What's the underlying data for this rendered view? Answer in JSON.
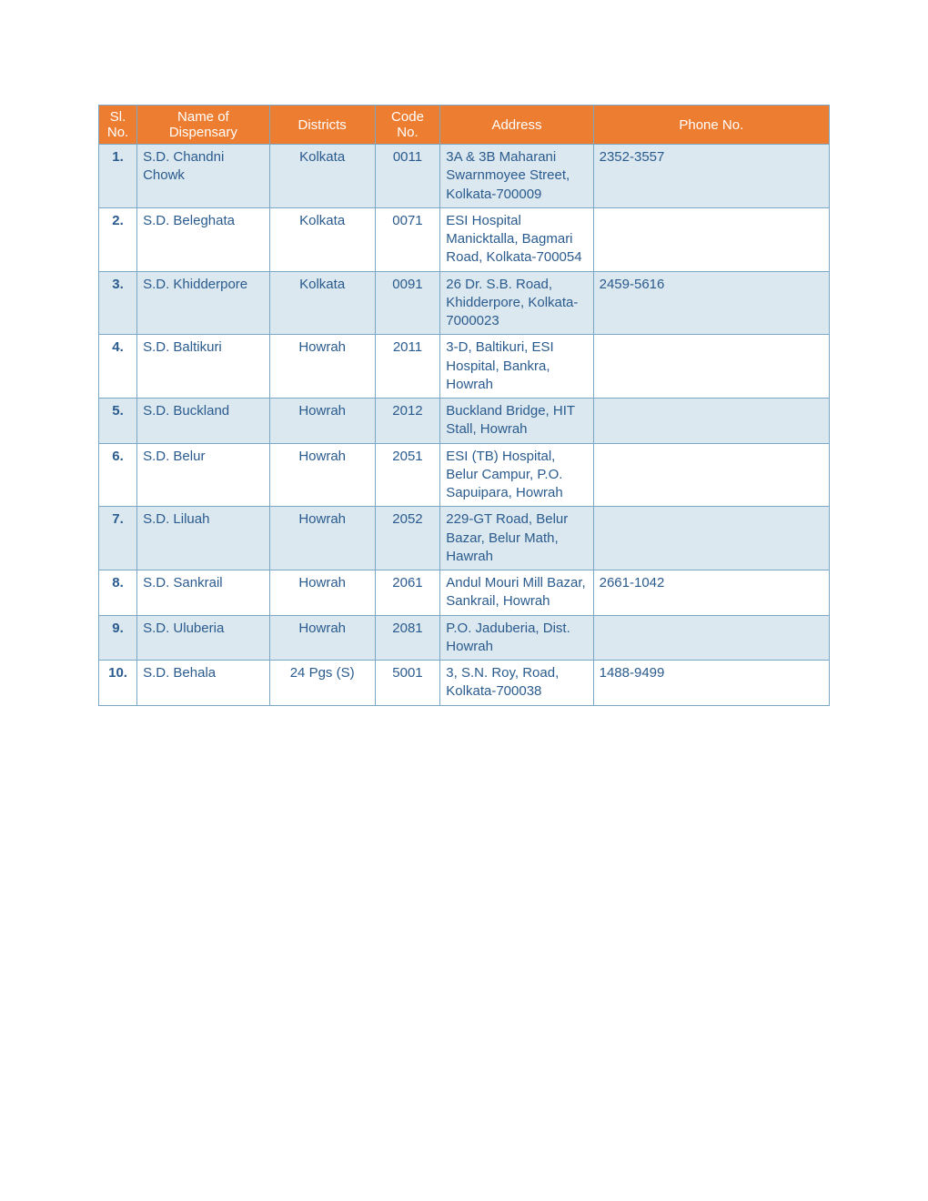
{
  "header": {
    "columns": [
      "Sl. No.",
      "Name of Dispensary",
      "Districts",
      "Code No.",
      "Address",
      "Phone No."
    ]
  },
  "rows": [
    {
      "sl": "1.",
      "name": "S.D. Chandni Chowk",
      "district": "Kolkata",
      "code": "0011",
      "address": "3A & 3B Maharani Swarnmoyee Street, Kolkata-700009",
      "phone": "2352-3557"
    },
    {
      "sl": "2.",
      "name": "S.D. Beleghata",
      "district": "Kolkata",
      "code": "0071",
      "address": "ESI Hospital Manicktalla, Bagmari Road, Kolkata-700054",
      "phone": ""
    },
    {
      "sl": "3.",
      "name": "S.D. Khidderpore",
      "district": "Kolkata",
      "code": "0091",
      "address": "26 Dr. S.B. Road, Khidderpore, Kolkata-7000023",
      "phone": "2459-5616"
    },
    {
      "sl": "4.",
      "name": "S.D. Baltikuri",
      "district": "Howrah",
      "code": "2011",
      "address": "3-D, Baltikuri, ESI Hospital, Bankra, Howrah",
      "phone": ""
    },
    {
      "sl": "5.",
      "name": "S.D. Buckland",
      "district": "Howrah",
      "code": "2012",
      "address": "Buckland Bridge, HIT Stall, Howrah",
      "phone": ""
    },
    {
      "sl": "6.",
      "name": "S.D. Belur",
      "district": "Howrah",
      "code": "2051",
      "address": "ESI (TB) Hospital, Belur Campur, P.O. Sapuipara, Howrah",
      "phone": ""
    },
    {
      "sl": "7.",
      "name": "S.D. Liluah",
      "district": "Howrah",
      "code": "2052",
      "address": "229-GT Road, Belur Bazar, Belur Math, Hawrah",
      "phone": ""
    },
    {
      "sl": "8.",
      "name": "S.D. Sankrail",
      "district": "Howrah",
      "code": "2061",
      "address": "Andul Mouri Mill Bazar, Sankrail, Howrah",
      "phone": "2661-1042"
    },
    {
      "sl": "9.",
      "name": "S.D. Uluberia",
      "district": "Howrah",
      "code": "2081",
      "address": "P.O. Jaduberia, Dist. Howrah",
      "phone": ""
    },
    {
      "sl": "10.",
      "name": "S.D. Behala",
      "district": "24 Pgs (S)",
      "code": "5001",
      "address": "3, S.N. Roy, Road, Kolkata-700038",
      "phone": "1488-9499"
    }
  ],
  "styling": {
    "header_bg": "#ed7d31",
    "header_text": "#ffffff",
    "border_color": "#7ba7c7",
    "odd_row_bg": "#dce8ef",
    "even_row_bg": "#ffffff",
    "cell_text_color": "#2a5b8e",
    "font_size": 15
  }
}
